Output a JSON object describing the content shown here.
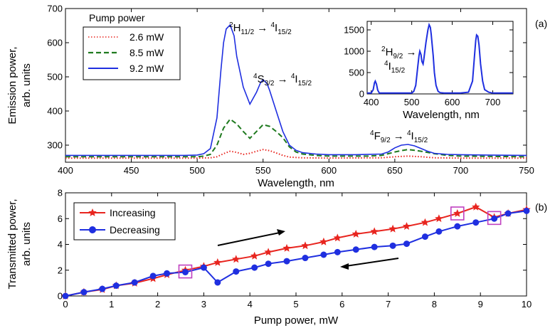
{
  "chart_data": [
    {
      "type": "line",
      "panel_label": "(a)",
      "xlabel": "Wavelength, nm",
      "ylabel": [
        "Emission power,",
        "arb. units"
      ],
      "xlim": [
        400,
        750
      ],
      "ylim": [
        250,
        700
      ],
      "xticks": [
        400,
        450,
        500,
        550,
        600,
        650,
        700,
        750
      ],
      "yticks": [
        300,
        400,
        500,
        600,
        700
      ],
      "legend_title": "Pump power",
      "legend_position": "top-left",
      "series": [
        {
          "name": "2.6 mW",
          "color": "#e8251f",
          "style": "dotted",
          "x": [
            400,
            500,
            510,
            515,
            520,
            525,
            530,
            535,
            540,
            545,
            550,
            555,
            560,
            565,
            570,
            580,
            600,
            640,
            650,
            660,
            670,
            680,
            700,
            750
          ],
          "y": [
            262,
            262,
            263,
            266,
            275,
            282,
            279,
            273,
            276,
            282,
            287,
            284,
            277,
            270,
            265,
            263,
            262,
            263,
            266,
            268,
            266,
            263,
            262,
            262
          ]
        },
        {
          "name": "8.5 mW",
          "color": "#1f7a1f",
          "style": "dashed",
          "x": [
            400,
            500,
            505,
            510,
            515,
            520,
            525,
            530,
            535,
            540,
            545,
            550,
            555,
            560,
            565,
            570,
            575,
            580,
            590,
            600,
            630,
            640,
            650,
            655,
            660,
            665,
            670,
            680,
            690,
            700,
            750
          ],
          "y": [
            266,
            266,
            268,
            273,
            300,
            350,
            376,
            362,
            340,
            320,
            340,
            360,
            355,
            340,
            322,
            295,
            280,
            274,
            270,
            268,
            268,
            270,
            280,
            284,
            287,
            285,
            282,
            275,
            270,
            268,
            266
          ]
        },
        {
          "name": "9.2 mW",
          "color": "#1f2fe0",
          "style": "solid",
          "x": [
            400,
            490,
            500,
            505,
            510,
            515,
            518,
            520,
            522,
            525,
            528,
            530,
            535,
            540,
            545,
            548,
            550,
            553,
            555,
            560,
            565,
            570,
            575,
            580,
            590,
            600,
            620,
            640,
            645,
            650,
            655,
            660,
            665,
            670,
            675,
            680,
            690,
            700,
            720,
            750
          ],
          "y": [
            270,
            270,
            271,
            275,
            290,
            380,
            520,
            600,
            640,
            652,
            620,
            560,
            470,
            420,
            455,
            482,
            492,
            480,
            460,
            400,
            340,
            300,
            285,
            278,
            274,
            272,
            272,
            274,
            280,
            292,
            300,
            302,
            298,
            290,
            282,
            276,
            273,
            272,
            271,
            270
          ]
        }
      ],
      "annotations": [
        {
          "base": "2H",
          "sub": "11/2",
          "arrow": "→",
          "base2": "4I",
          "sub2": "15/2"
        },
        {
          "base": "4S",
          "sub": "3/2",
          "arrow": "→",
          "base2": "4I",
          "sub2": "15/2"
        },
        {
          "base": "4F",
          "sub": "9/2",
          "arrow": "→",
          "base2": "4I",
          "sub2": "15/2"
        }
      ],
      "inset": {
        "type": "line",
        "xlabel": "Wavelength, nm",
        "xlim": [
          390,
          750
        ],
        "ylim": [
          0,
          1700
        ],
        "xticks": [
          400,
          500,
          600,
          700
        ],
        "yticks": [
          0,
          500,
          1000,
          1500
        ],
        "color": "#1f2fe0",
        "annotation": {
          "base": "2H",
          "sub": "9/2",
          "arrow": "→",
          "base2": "4I",
          "sub2": "15/2"
        },
        "x": [
          390,
          400,
          405,
          408,
          410,
          413,
          416,
          420,
          440,
          480,
          500,
          505,
          510,
          515,
          518,
          520,
          523,
          525,
          528,
          530,
          535,
          540,
          543,
          546,
          548,
          550,
          553,
          556,
          560,
          565,
          570,
          580,
          600,
          620,
          640,
          650,
          655,
          658,
          660,
          663,
          666,
          670,
          675,
          680,
          690,
          700,
          720,
          750
        ],
        "y": [
          20,
          20,
          100,
          260,
          300,
          230,
          90,
          20,
          20,
          20,
          20,
          60,
          200,
          650,
          900,
          1000,
          920,
          760,
          700,
          820,
          1200,
          1500,
          1620,
          1560,
          1400,
          1200,
          900,
          500,
          200,
          60,
          30,
          20,
          20,
          20,
          40,
          300,
          900,
          1250,
          1380,
          1350,
          1150,
          700,
          300,
          100,
          40,
          20,
          20,
          20
        ]
      }
    },
    {
      "type": "line",
      "panel_label": "(b)",
      "xlabel": "Pump power, mW",
      "ylabel": [
        "Transmitted power,",
        "arb. units"
      ],
      "xlim": [
        0,
        10
      ],
      "ylim": [
        0,
        8
      ],
      "xticks": [
        0,
        1,
        2,
        3,
        4,
        5,
        6,
        7,
        8,
        9,
        10
      ],
      "yticks": [
        0,
        2,
        4,
        6,
        8
      ],
      "legend_position": "top-left",
      "series": [
        {
          "name": "Increasing",
          "color": "#e8251f",
          "marker": "star",
          "x": [
            0,
            0.4,
            0.8,
            1.1,
            1.5,
            1.9,
            2.2,
            2.6,
            3.0,
            3.3,
            3.7,
            4.1,
            4.4,
            4.8,
            5.2,
            5.6,
            5.9,
            6.3,
            6.7,
            7.1,
            7.4,
            7.8,
            8.1,
            8.5,
            8.9,
            9.3,
            9.6,
            10.0
          ],
          "y": [
            0,
            0.3,
            0.5,
            0.8,
            1.0,
            1.35,
            1.65,
            2.0,
            2.3,
            2.6,
            2.85,
            3.1,
            3.4,
            3.7,
            3.9,
            4.2,
            4.5,
            4.8,
            5.0,
            5.2,
            5.4,
            5.7,
            6.0,
            6.4,
            6.9,
            6.1,
            6.4,
            6.7
          ]
        },
        {
          "name": "Decreasing",
          "color": "#1f2fe0",
          "marker": "circle",
          "x": [
            0,
            0.4,
            0.8,
            1.1,
            1.5,
            1.9,
            2.2,
            2.6,
            3.0,
            3.3,
            3.7,
            4.1,
            4.4,
            4.8,
            5.2,
            5.6,
            5.9,
            6.3,
            6.7,
            7.1,
            7.4,
            7.8,
            8.1,
            8.5,
            8.9,
            9.3,
            9.6,
            10.0
          ],
          "y": [
            0,
            0.3,
            0.55,
            0.8,
            1.05,
            1.55,
            1.75,
            1.85,
            2.2,
            1.05,
            1.9,
            2.2,
            2.5,
            2.7,
            2.95,
            3.2,
            3.4,
            3.6,
            3.8,
            3.9,
            4.05,
            4.6,
            5.0,
            5.4,
            5.7,
            6.0,
            6.4,
            6.6
          ]
        }
      ],
      "highlight_boxes_at": [
        [
          2.6,
          1.9
        ],
        [
          8.5,
          6.4
        ],
        [
          9.3,
          6.05
        ]
      ]
    }
  ]
}
